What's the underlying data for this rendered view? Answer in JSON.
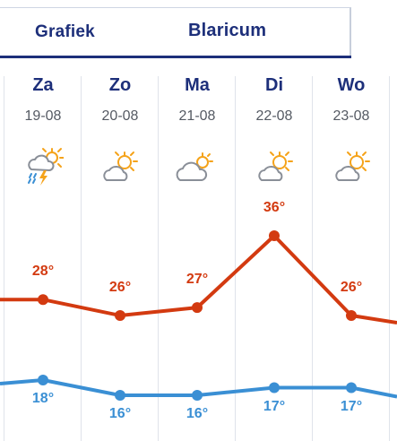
{
  "tabs": {
    "graph_label": "Grafiek",
    "location_label": "Blaricum"
  },
  "days": [
    {
      "day": "Za",
      "date": "19-08",
      "icon": "cloud-sun-thunder-rain-icon",
      "max": "28°",
      "min": "18°"
    },
    {
      "day": "Zo",
      "date": "20-08",
      "icon": "sun-behind-cloud-icon",
      "max": "26°",
      "min": "16°"
    },
    {
      "day": "Ma",
      "date": "21-08",
      "icon": "cloud-with-sun-icon",
      "max": "27°",
      "min": "16°"
    },
    {
      "day": "Di",
      "date": "22-08",
      "icon": "sun-behind-cloud-icon",
      "max": "36°",
      "min": "17°"
    },
    {
      "day": "Wo",
      "date": "23-08",
      "icon": "sun-behind-cloud-icon",
      "max": "26°",
      "min": "17°"
    }
  ],
  "chart_data": {
    "type": "line",
    "categories": [
      "19-08",
      "20-08",
      "21-08",
      "22-08",
      "23-08"
    ],
    "series": [
      {
        "values": [
          28,
          26,
          27,
          36,
          26
        ],
        "color": "#d33a10"
      },
      {
        "values": [
          18,
          16,
          16,
          17,
          17
        ],
        "color": "#3a8fd4"
      }
    ]
  }
}
